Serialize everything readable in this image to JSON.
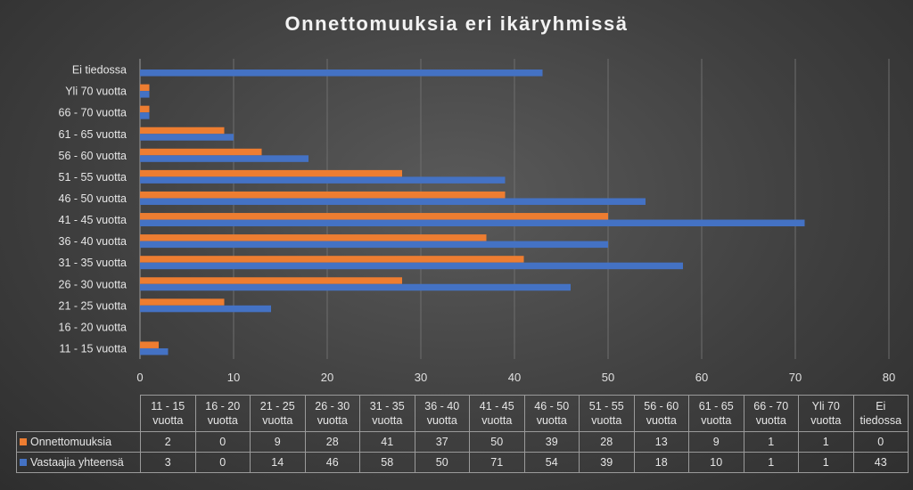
{
  "chart_data": {
    "type": "bar",
    "orientation": "horizontal",
    "title": "Onnettomuuksia eri ikäryhmissä",
    "categories": [
      "11 - 15 vuotta",
      "16 - 20 vuotta",
      "21 - 25 vuotta",
      "26 - 30 vuotta",
      "31 - 35 vuotta",
      "36 - 40 vuotta",
      "41 - 45 vuotta",
      "46 - 50 vuotta",
      "51 - 55 vuotta",
      "56 - 60 vuotta",
      "61 - 65 vuotta",
      "66 - 70 vuotta",
      "Yli 70 vuotta",
      "Ei tiedossa"
    ],
    "table_headers": [
      [
        "11 - 15",
        "vuotta"
      ],
      [
        "16 - 20",
        "vuotta"
      ],
      [
        "21 - 25",
        "vuotta"
      ],
      [
        "26 - 30",
        "vuotta"
      ],
      [
        "31 - 35",
        "vuotta"
      ],
      [
        "36 - 40",
        "vuotta"
      ],
      [
        "41 - 45",
        "vuotta"
      ],
      [
        "46 - 50",
        "vuotta"
      ],
      [
        "51 - 55",
        "vuotta"
      ],
      [
        "56 - 60",
        "vuotta"
      ],
      [
        "61 - 65",
        "vuotta"
      ],
      [
        "66 - 70",
        "vuotta"
      ],
      [
        "Yli 70",
        "vuotta"
      ],
      [
        "Ei",
        "tiedossa"
      ]
    ],
    "series": [
      {
        "name": "Onnettomuuksia",
        "color": "#ed7d31",
        "values": [
          2,
          0,
          9,
          28,
          41,
          37,
          50,
          39,
          28,
          13,
          9,
          1,
          1,
          0
        ]
      },
      {
        "name": "Vastaajia yhteensä",
        "color": "#4472c4",
        "values": [
          3,
          0,
          14,
          46,
          58,
          50,
          71,
          54,
          39,
          18,
          10,
          1,
          1,
          43
        ]
      }
    ],
    "xlim": [
      0,
      80
    ],
    "xticks": [
      0,
      10,
      20,
      30,
      40,
      50,
      60,
      70,
      80
    ],
    "grid": true,
    "legend": "data-table",
    "xlabel": "",
    "ylabel": ""
  }
}
